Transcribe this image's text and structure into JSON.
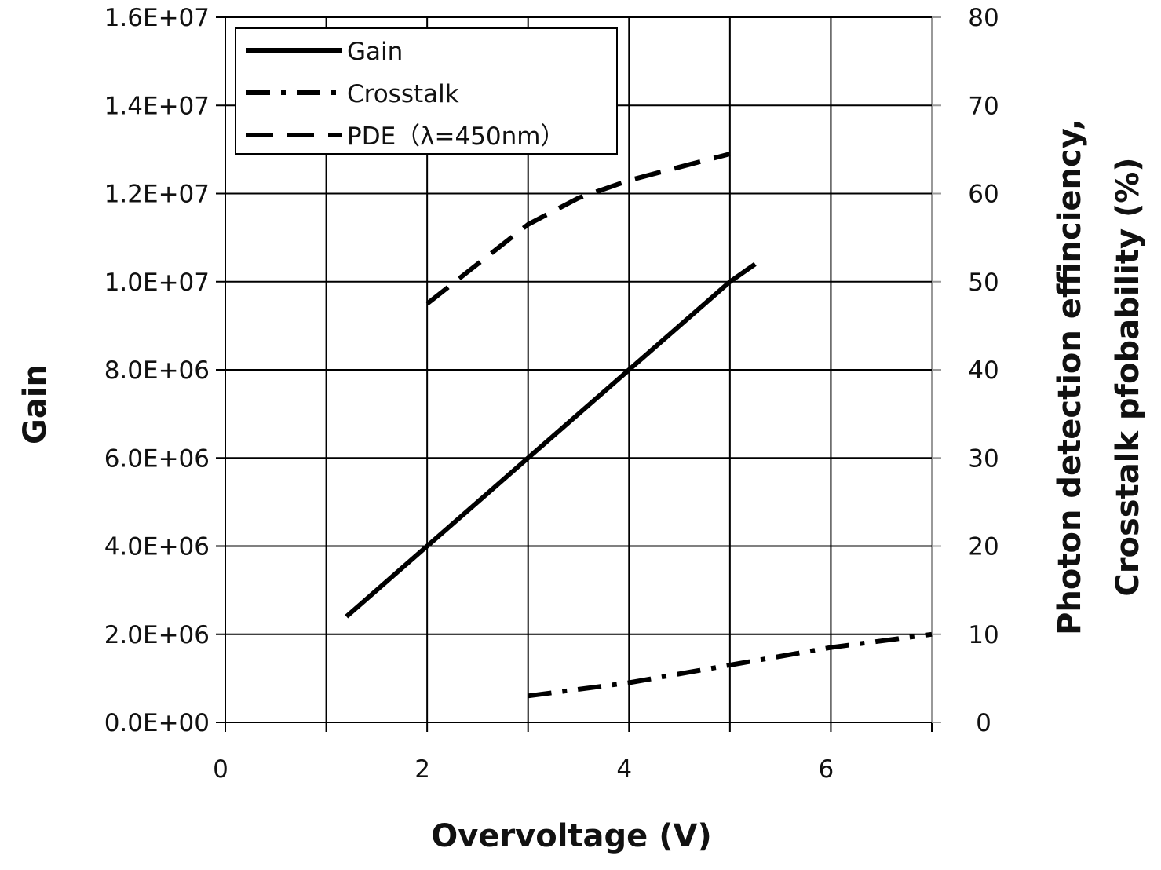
{
  "chart_data": {
    "type": "line",
    "xlabel": "Overvoltage (V)",
    "ylabel_left": "Gain",
    "ylabel_right_line1": "Photon detection effinciency,",
    "ylabel_right_line2": "Crosstalk pfobability (%)",
    "xlim": [
      0,
      7
    ],
    "ylim_left": [
      0,
      16000000
    ],
    "ylim_right": [
      0,
      80
    ],
    "x_ticks": [
      0,
      1,
      2,
      3,
      4,
      5,
      6,
      7
    ],
    "x_tick_labels": [
      "0",
      "",
      "2",
      "",
      "4",
      "",
      "6",
      ""
    ],
    "y_left_tick_values": [
      0,
      2000000,
      4000000,
      6000000,
      8000000,
      10000000,
      12000000,
      14000000,
      16000000
    ],
    "y_left_tick_labels": [
      "0.0E+00",
      "2.0E+06",
      "4.0E+06",
      "6.0E+06",
      "8.0E+06",
      "1.0E+07",
      "1.2E+07",
      "1.4E+07",
      "1.6E+07"
    ],
    "y_right_tick_values": [
      0,
      10,
      20,
      30,
      40,
      50,
      60,
      70,
      80
    ],
    "y_right_tick_labels": [
      "0",
      "10",
      "20",
      "30",
      "40",
      "50",
      "60",
      "70",
      "80"
    ],
    "grid": true,
    "legend_position": "top-left",
    "series": [
      {
        "name": "Gain",
        "axis": "left",
        "dash": "solid",
        "x": [
          1.2,
          2.0,
          3.0,
          4.0,
          5.0,
          5.25
        ],
        "y": [
          2400000,
          4000000,
          6000000,
          8000000,
          10000000,
          10400000
        ]
      },
      {
        "name": "Crosstalk",
        "axis": "right",
        "dash": "dash-dot",
        "x": [
          3.0,
          4.0,
          5.0,
          6.0,
          7.0
        ],
        "y": [
          3,
          4.5,
          6.5,
          8.5,
          10
        ]
      },
      {
        "name": "PDE（λ=450nm）",
        "axis": "right",
        "dash": "dashed",
        "x": [
          2.0,
          2.5,
          3.0,
          3.5,
          4.0,
          4.5,
          5.0
        ],
        "y": [
          47.5,
          52,
          56.5,
          59.5,
          61.5,
          63,
          64.5
        ]
      }
    ]
  }
}
